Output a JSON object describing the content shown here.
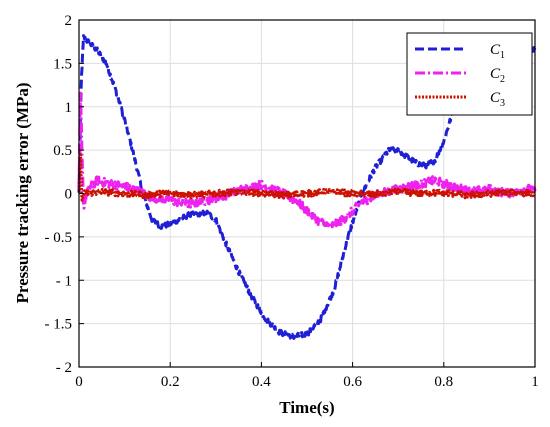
{
  "chart_data": {
    "type": "line",
    "xlabel": "Time(s)",
    "ylabel": "Pressure tracking error (MPa)",
    "xlim": [
      0,
      1
    ],
    "ylim": [
      -2,
      2
    ],
    "xticks": [
      0,
      0.2,
      0.4,
      0.6,
      0.8,
      1
    ],
    "xtick_labels": [
      "0",
      "0.2",
      "0.4",
      "0.6",
      "0.8",
      "1"
    ],
    "yticks": [
      2,
      1.5,
      1,
      0.5,
      0,
      -0.5,
      -1,
      -1.5,
      -2
    ],
    "ytick_labels": [
      "2",
      "1.5",
      "1",
      "0.5",
      "0",
      "- 0.5",
      "- 1",
      "- 1.5",
      "- 2"
    ],
    "grid": true,
    "legend_position": "top-right",
    "series": [
      {
        "name": "C",
        "subscript": "1",
        "color": "#1f1fd6",
        "style": "dashed",
        "x": [
          0,
          0.005,
          0.01,
          0.02,
          0.04,
          0.06,
          0.08,
          0.1,
          0.12,
          0.14,
          0.16,
          0.18,
          0.2,
          0.24,
          0.28,
          0.3,
          0.32,
          0.35,
          0.38,
          0.41,
          0.44,
          0.47,
          0.5,
          0.53,
          0.56,
          0.59,
          0.62,
          0.65,
          0.68,
          0.7,
          0.72,
          0.74,
          0.76,
          0.78,
          0.8,
          0.82,
          0.84,
          0.86,
          0.88,
          0.9,
          0.92,
          0.94,
          0.96,
          0.98,
          1.0
        ],
        "y": [
          0,
          1.3,
          1.8,
          1.75,
          1.65,
          1.5,
          1.2,
          0.85,
          0.45,
          0.0,
          -0.3,
          -0.38,
          -0.35,
          -0.25,
          -0.22,
          -0.3,
          -0.55,
          -0.9,
          -1.2,
          -1.45,
          -1.6,
          -1.65,
          -1.62,
          -1.45,
          -1.1,
          -0.5,
          0.0,
          0.3,
          0.5,
          0.5,
          0.42,
          0.35,
          0.32,
          0.38,
          0.6,
          0.95,
          1.3,
          1.6,
          1.72,
          1.78,
          1.75,
          1.72,
          1.7,
          1.68,
          1.65
        ]
      },
      {
        "name": "C",
        "subscript": "2",
        "color": "#ee22ee",
        "style": "dashdot",
        "x": [
          0,
          0.003,
          0.006,
          0.01,
          0.02,
          0.04,
          0.06,
          0.08,
          0.1,
          0.12,
          0.14,
          0.16,
          0.2,
          0.24,
          0.28,
          0.32,
          0.36,
          0.4,
          0.44,
          0.48,
          0.52,
          0.55,
          0.58,
          0.62,
          0.66,
          0.7,
          0.74,
          0.78,
          0.82,
          0.86,
          0.9,
          0.94,
          0.98,
          1.0
        ],
        "y": [
          0,
          1.2,
          0.6,
          -0.15,
          0.05,
          0.15,
          0.12,
          0.1,
          0.08,
          0.05,
          0.0,
          -0.05,
          -0.08,
          -0.12,
          -0.08,
          -0.02,
          0.05,
          0.1,
          0.02,
          -0.1,
          -0.3,
          -0.38,
          -0.3,
          -0.1,
          0.0,
          0.05,
          0.1,
          0.15,
          0.08,
          0.02,
          0.05,
          0.0,
          0.05,
          0.05
        ]
      },
      {
        "name": "C",
        "subscript": "3",
        "color": "#cc1100",
        "style": "dotted",
        "x": [
          0,
          0.003,
          0.006,
          0.01,
          0.05,
          0.1,
          0.15,
          0.2,
          0.25,
          0.3,
          0.35,
          0.4,
          0.45,
          0.5,
          0.55,
          0.6,
          0.65,
          0.7,
          0.75,
          0.8,
          0.85,
          0.9,
          0.95,
          1.0
        ],
        "y": [
          0,
          0.55,
          -0.1,
          0.0,
          0.02,
          0.0,
          -0.02,
          0.01,
          -0.02,
          0.0,
          0.02,
          0.0,
          -0.02,
          0.0,
          0.02,
          0.0,
          -0.01,
          0.02,
          0.0,
          0.01,
          -0.02,
          0.0,
          0.01,
          0.0
        ]
      }
    ]
  }
}
